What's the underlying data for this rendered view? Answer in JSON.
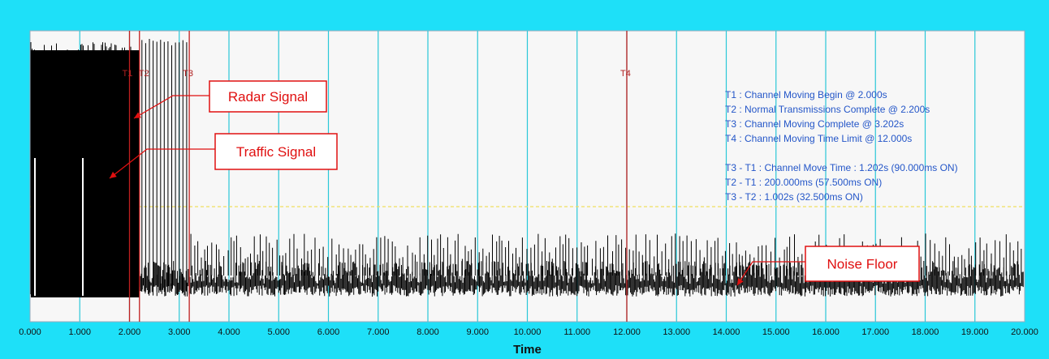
{
  "chart_data": {
    "type": "line",
    "xlabel": "Time",
    "ylabel": "",
    "xlim": [
      0,
      20
    ],
    "x_ticks": [
      "0.000",
      "1.000",
      "2.000",
      "3.000",
      "4.000",
      "5.000",
      "6.000",
      "7.000",
      "8.000",
      "9.000",
      "10.000",
      "11.000",
      "12.000",
      "13.000",
      "14.000",
      "15.000",
      "16.000",
      "17.000",
      "18.000",
      "19.000",
      "20.000"
    ],
    "grid": "vertical",
    "threshold_line": {
      "style": "dashed",
      "color": "#f0e060"
    },
    "markers": [
      {
        "label": "T1",
        "x": 2.0
      },
      {
        "label": "T2",
        "x": 2.2
      },
      {
        "label": "T3",
        "x": 3.202
      },
      {
        "label": "T4",
        "x": 12.0
      }
    ],
    "info_text": [
      "T1 : Channel Moving Begin @ 2.000s",
      "T2 : Normal Transmissions Complete @ 2.200s",
      "T3 : Channel Moving Complete @ 3.202s",
      "T4 : Channel Moving Time Limit @ 12.000s",
      "",
      "T3 - T1 : Channel Move Time : 1.202s (90.000ms ON)",
      "T2 - T1 : 200.000ms (57.500ms ON)",
      "T3 - T2 : 1.002s (32.500ms ON)"
    ],
    "annotations": [
      {
        "text": "Radar Signal",
        "points_to_x": 2.1
      },
      {
        "text": "Traffic Signal",
        "points_to_x": 1.5
      },
      {
        "text": "Noise Floor",
        "points_to_x": 14.2
      }
    ],
    "series": [
      {
        "description_levels": {
          "dense_before_T2": "high",
          "pulses_T2_to_T3": "high",
          "noise_floor_after_T3": "low"
        }
      }
    ],
    "colors": {
      "frame": "#1ee0f8",
      "plot_bg": "#f7f7f7",
      "gridline": "#2ac8d8",
      "signal": "#000000",
      "marker": "#c02020",
      "info_text": "#2456c8",
      "callout": "#e01010"
    }
  }
}
